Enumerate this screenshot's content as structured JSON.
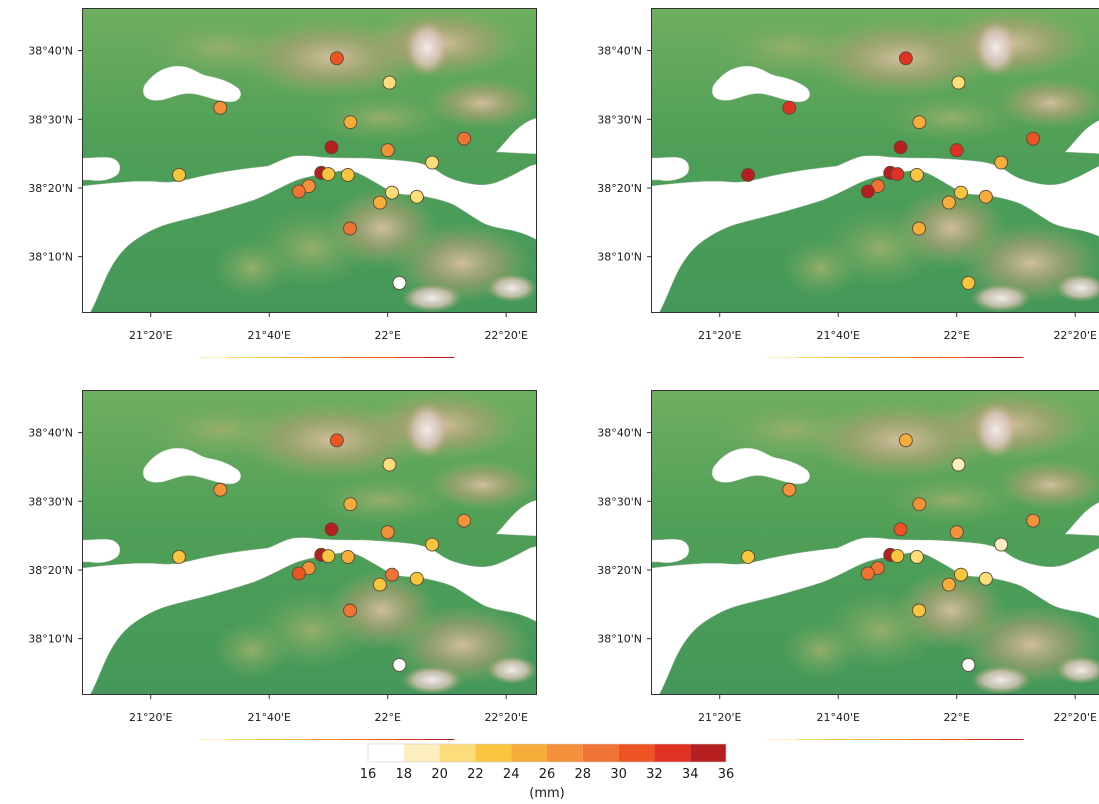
{
  "map": {
    "lat_ticks": [
      {
        "value": 38.6667,
        "label": "38°40'N"
      },
      {
        "value": 38.5,
        "label": "38°30'N"
      },
      {
        "value": 38.3333,
        "label": "38°20'N"
      },
      {
        "value": 38.1667,
        "label": "38°10'N"
      }
    ],
    "lon_ticks": [
      {
        "value": 21.3333,
        "label": "21°20'E"
      },
      {
        "value": 21.6667,
        "label": "21°40'E"
      },
      {
        "value": 22.0,
        "label": "22°E"
      },
      {
        "value": 22.3333,
        "label": "22°20'E"
      }
    ],
    "extent": {
      "lon": [
        21.14,
        22.42
      ],
      "lat": [
        38.03,
        38.77
      ]
    },
    "terrain_colors": {
      "low": "#3f9a55",
      "mid": "#7eb36a",
      "high": "#c4a77b",
      "peak": "#e8dcd6",
      "sea": "#ffffff"
    }
  },
  "colorbar": {
    "levels": [
      16,
      18,
      20,
      22,
      24,
      26,
      28,
      30,
      32,
      34,
      36
    ],
    "labels": [
      "16",
      "18",
      "20",
      "22",
      "24",
      "26",
      "28",
      "30",
      "32",
      "34",
      "36"
    ],
    "colors": [
      "#ffffff",
      "#fdeebf",
      "#fddc7a",
      "#f9c53f",
      "#f6ad3a",
      "#f3923a",
      "#ef7334",
      "#ec5523",
      "#df3124",
      "#b51f1f"
    ],
    "unit": "(mm)"
  },
  "stations": [
    {
      "id": "s1",
      "lon": 21.413,
      "lat": 38.365
    },
    {
      "id": "s2",
      "lon": 21.529,
      "lat": 38.528
    },
    {
      "id": "s3",
      "lon": 21.857,
      "lat": 38.648
    },
    {
      "id": "s4",
      "lon": 22.005,
      "lat": 38.589
    },
    {
      "id": "s5",
      "lon": 21.895,
      "lat": 38.493
    },
    {
      "id": "s6",
      "lon": 21.842,
      "lat": 38.432
    },
    {
      "id": "s7",
      "lon": 21.813,
      "lat": 38.37
    },
    {
      "id": "s8",
      "lon": 21.778,
      "lat": 38.338
    },
    {
      "id": "s9",
      "lon": 21.75,
      "lat": 38.325
    },
    {
      "id": "s10",
      "lon": 21.833,
      "lat": 38.367
    },
    {
      "id": "s11",
      "lon": 21.888,
      "lat": 38.365
    },
    {
      "id": "s12",
      "lon": 21.978,
      "lat": 38.298
    },
    {
      "id": "s13",
      "lon": 22.012,
      "lat": 38.322
    },
    {
      "id": "s14",
      "lon": 22.082,
      "lat": 38.312
    },
    {
      "id": "s15",
      "lon": 22.0,
      "lat": 38.425
    },
    {
      "id": "s16",
      "lon": 22.125,
      "lat": 38.395
    },
    {
      "id": "s17",
      "lon": 22.215,
      "lat": 38.453
    },
    {
      "id": "s18",
      "lon": 21.894,
      "lat": 38.235
    },
    {
      "id": "s19",
      "lon": 22.033,
      "lat": 38.103
    }
  ],
  "chart_data": {
    "type": "scatter",
    "unit": "(mm)",
    "panels": [
      {
        "id": "top-left",
        "values": [
          23,
          27,
          31,
          20,
          24,
          34,
          35,
          27,
          29,
          22,
          23,
          24,
          21,
          20,
          27,
          21,
          29,
          28,
          16
        ]
      },
      {
        "id": "top-right",
        "values": [
          34,
          33,
          32,
          20,
          25,
          34,
          35,
          28,
          34,
          32,
          23,
          24,
          22,
          25,
          32,
          24,
          31,
          24,
          22
        ]
      },
      {
        "id": "bottom-left",
        "values": [
          23,
          27,
          31,
          20,
          25,
          34,
          35,
          27,
          31,
          23,
          24,
          22,
          28,
          22,
          26,
          23,
          27,
          28,
          17
        ]
      },
      {
        "id": "bottom-right",
        "values": [
          23,
          27,
          25,
          18,
          26,
          31,
          34,
          28,
          29,
          23,
          21,
          24,
          22,
          20,
          26,
          19,
          26,
          23,
          16
        ]
      }
    ]
  }
}
